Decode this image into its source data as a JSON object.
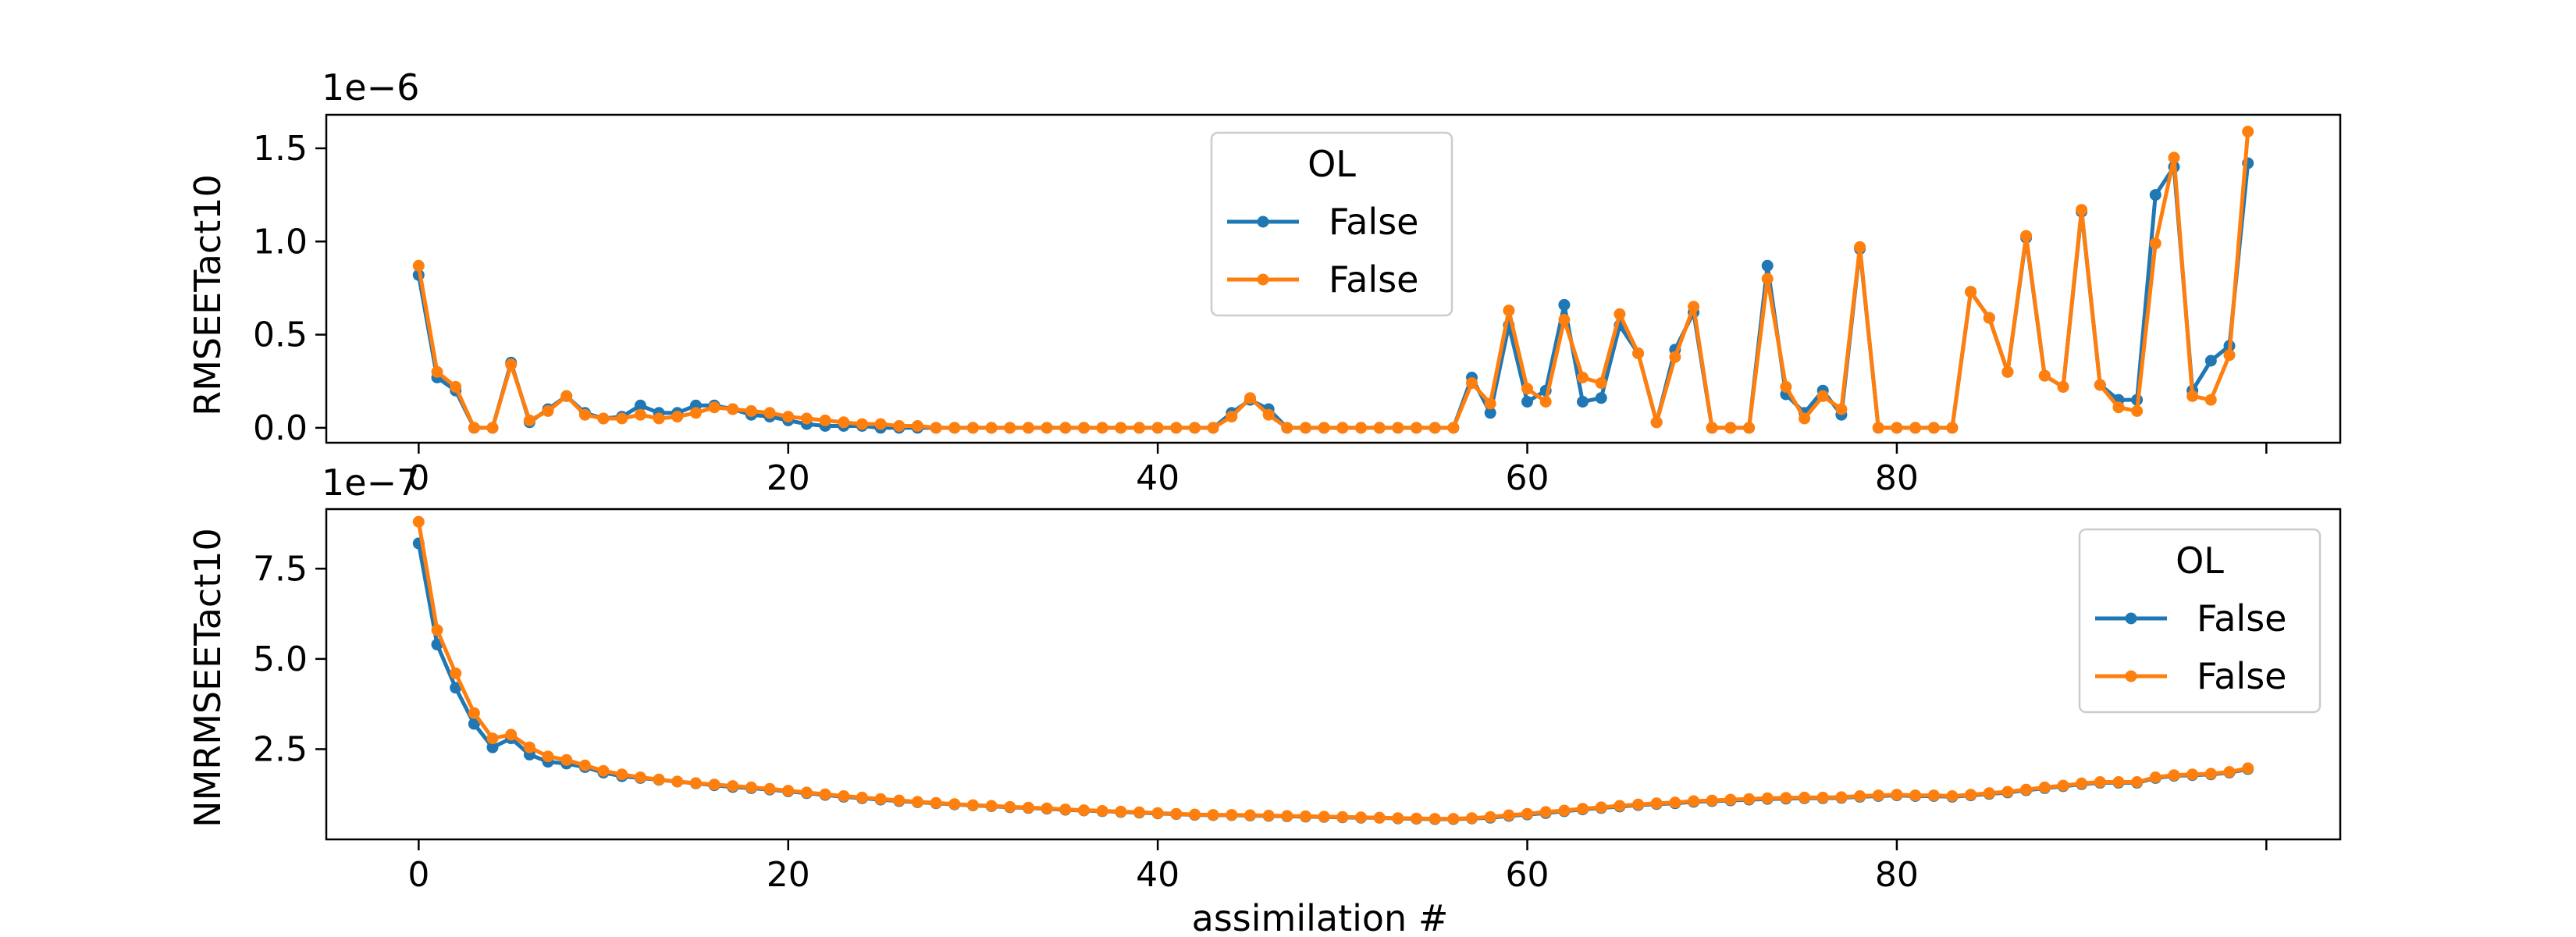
{
  "chart_data": [
    {
      "type": "line",
      "ylabel": "RMSEETact10",
      "offset_text": "1e−6",
      "xlim": [
        -5,
        104
      ],
      "ylim": [
        -0.08,
        1.68
      ],
      "xticks": [
        0,
        20,
        40,
        60,
        80,
        100
      ],
      "xtick_labels": [
        "0",
        "20",
        "40",
        "60",
        "80",
        ""
      ],
      "yticks": [
        0.0,
        0.5,
        1.0,
        1.5
      ],
      "ytick_labels": [
        "0.0",
        "0.5",
        "1.0",
        "1.5"
      ],
      "legend": {
        "title": "OL",
        "position": "upper-center"
      },
      "series": [
        {
          "name": "False",
          "color": "#1f77b4",
          "values": [
            0.82,
            0.27,
            0.2,
            0.0,
            0.0,
            0.35,
            0.03,
            0.1,
            0.17,
            0.08,
            0.05,
            0.06,
            0.12,
            0.08,
            0.08,
            0.12,
            0.12,
            0.1,
            0.07,
            0.06,
            0.04,
            0.02,
            0.01,
            0.01,
            0.01,
            0.0,
            0.0,
            0.0,
            0.0,
            0.0,
            0.0,
            0.0,
            0.0,
            0.0,
            0.0,
            0.0,
            0.0,
            0.0,
            0.0,
            0.0,
            0.0,
            0.0,
            0.0,
            0.0,
            0.08,
            0.15,
            0.1,
            0.0,
            0.0,
            0.0,
            0.0,
            0.0,
            0.0,
            0.0,
            0.0,
            0.0,
            0.0,
            0.27,
            0.08,
            0.55,
            0.14,
            0.2,
            0.66,
            0.14,
            0.16,
            0.55,
            0.4,
            0.03,
            0.42,
            0.62,
            0.0,
            0.0,
            0.0,
            0.87,
            0.18,
            0.08,
            0.2,
            0.07,
            0.96,
            0.0,
            0.0,
            0.0,
            0.0,
            0.0,
            0.73,
            0.59,
            0.3,
            1.02,
            0.28,
            0.22,
            1.16,
            0.23,
            0.15,
            0.15,
            1.25,
            1.4,
            0.2,
            0.36,
            0.44,
            1.42
          ]
        },
        {
          "name": "False",
          "color": "#ff7f0e",
          "values": [
            0.87,
            0.3,
            0.22,
            0.0,
            0.0,
            0.34,
            0.04,
            0.09,
            0.17,
            0.07,
            0.05,
            0.05,
            0.07,
            0.05,
            0.06,
            0.08,
            0.11,
            0.1,
            0.09,
            0.08,
            0.06,
            0.05,
            0.04,
            0.03,
            0.02,
            0.02,
            0.01,
            0.01,
            0.0,
            0.0,
            0.0,
            0.0,
            0.0,
            0.0,
            0.0,
            0.0,
            0.0,
            0.0,
            0.0,
            0.0,
            0.0,
            0.0,
            0.0,
            0.0,
            0.06,
            0.16,
            0.07,
            0.0,
            0.0,
            0.0,
            0.0,
            0.0,
            0.0,
            0.0,
            0.0,
            0.0,
            0.0,
            0.24,
            0.13,
            0.63,
            0.21,
            0.14,
            0.58,
            0.27,
            0.24,
            0.61,
            0.4,
            0.03,
            0.38,
            0.65,
            0.0,
            0.0,
            0.0,
            0.8,
            0.22,
            0.05,
            0.17,
            0.1,
            0.97,
            0.0,
            0.0,
            0.0,
            0.0,
            0.0,
            0.73,
            0.59,
            0.3,
            1.03,
            0.28,
            0.22,
            1.17,
            0.23,
            0.11,
            0.09,
            0.99,
            1.45,
            0.17,
            0.15,
            0.39,
            1.59
          ]
        }
      ]
    },
    {
      "type": "line",
      "ylabel": "NMRMSEETact10",
      "offset_text": "1e−7",
      "xlabel": "assimilation #",
      "xlim": [
        -5,
        104
      ],
      "ylim": [
        0.0,
        9.15
      ],
      "xticks": [
        0,
        20,
        40,
        60,
        80,
        100
      ],
      "xtick_labels": [
        "0",
        "20",
        "40",
        "60",
        "80",
        ""
      ],
      "yticks": [
        2.5,
        5.0,
        7.5
      ],
      "ytick_labels": [
        "2.5",
        "5.0",
        "7.5"
      ],
      "legend": {
        "title": "OL",
        "position": "upper-right"
      },
      "series": [
        {
          "name": "False",
          "color": "#1f77b4",
          "values": [
            8.2,
            5.4,
            4.2,
            3.2,
            2.55,
            2.8,
            2.35,
            2.15,
            2.1,
            2.0,
            1.85,
            1.75,
            1.7,
            1.65,
            1.6,
            1.55,
            1.5,
            1.45,
            1.42,
            1.38,
            1.33,
            1.28,
            1.23,
            1.18,
            1.14,
            1.1,
            1.06,
            1.03,
            1.0,
            0.97,
            0.94,
            0.92,
            0.89,
            0.87,
            0.85,
            0.82,
            0.8,
            0.78,
            0.76,
            0.74,
            0.72,
            0.7,
            0.68,
            0.67,
            0.67,
            0.66,
            0.65,
            0.64,
            0.63,
            0.62,
            0.61,
            0.6,
            0.6,
            0.58,
            0.57,
            0.56,
            0.56,
            0.58,
            0.6,
            0.65,
            0.69,
            0.73,
            0.78,
            0.83,
            0.87,
            0.91,
            0.95,
            0.98,
            1.0,
            1.04,
            1.06,
            1.08,
            1.1,
            1.12,
            1.13,
            1.14,
            1.14,
            1.15,
            1.18,
            1.2,
            1.22,
            1.2,
            1.2,
            1.18,
            1.22,
            1.26,
            1.3,
            1.36,
            1.42,
            1.47,
            1.53,
            1.57,
            1.57,
            1.57,
            1.7,
            1.76,
            1.78,
            1.8,
            1.85,
            1.95
          ]
        },
        {
          "name": "False",
          "color": "#ff7f0e",
          "values": [
            8.8,
            5.8,
            4.6,
            3.5,
            2.8,
            2.9,
            2.55,
            2.3,
            2.2,
            2.05,
            1.9,
            1.8,
            1.72,
            1.66,
            1.6,
            1.56,
            1.52,
            1.48,
            1.44,
            1.4,
            1.35,
            1.3,
            1.25,
            1.2,
            1.16,
            1.12,
            1.08,
            1.04,
            1.01,
            0.98,
            0.95,
            0.93,
            0.9,
            0.88,
            0.86,
            0.83,
            0.81,
            0.79,
            0.77,
            0.75,
            0.73,
            0.71,
            0.69,
            0.68,
            0.68,
            0.67,
            0.66,
            0.65,
            0.64,
            0.63,
            0.62,
            0.61,
            0.6,
            0.59,
            0.58,
            0.57,
            0.57,
            0.59,
            0.62,
            0.67,
            0.71,
            0.76,
            0.8,
            0.85,
            0.89,
            0.93,
            0.97,
            1.0,
            1.02,
            1.06,
            1.08,
            1.1,
            1.12,
            1.14,
            1.15,
            1.16,
            1.16,
            1.17,
            1.2,
            1.22,
            1.24,
            1.22,
            1.22,
            1.2,
            1.24,
            1.28,
            1.32,
            1.38,
            1.44,
            1.49,
            1.55,
            1.59,
            1.59,
            1.59,
            1.72,
            1.78,
            1.8,
            1.82,
            1.87,
            1.97
          ]
        }
      ]
    }
  ]
}
